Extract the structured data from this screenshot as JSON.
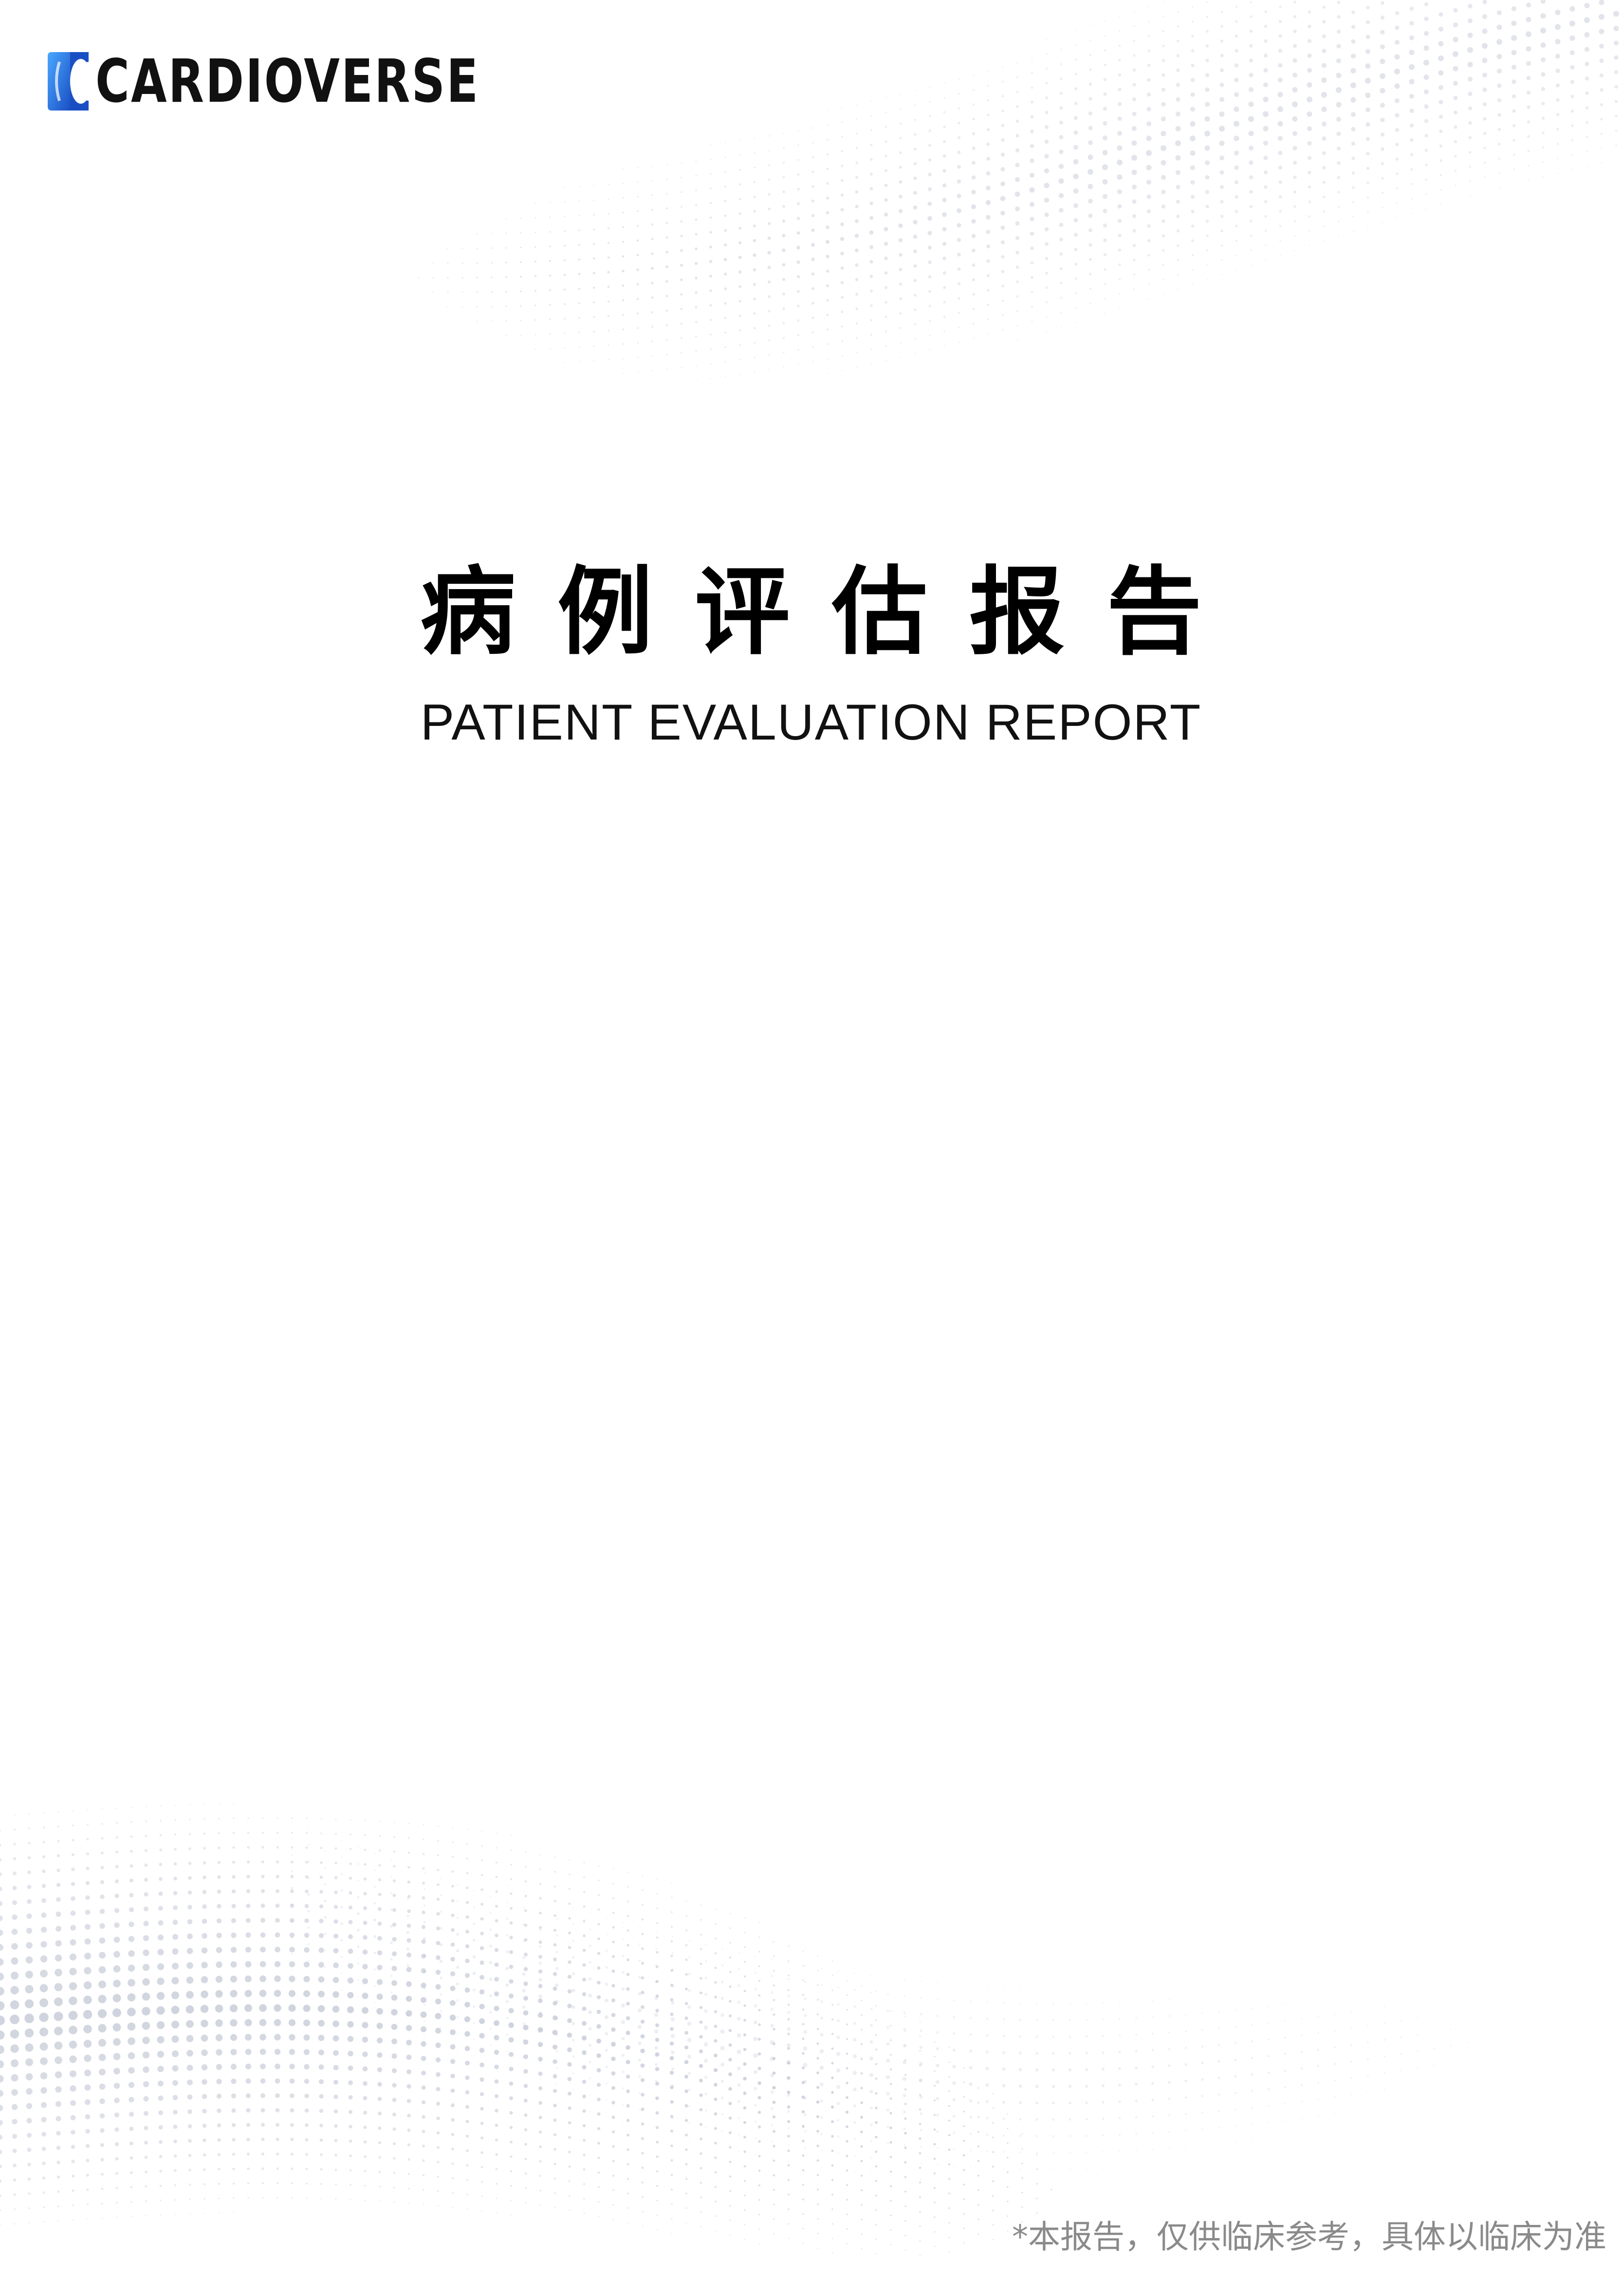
{
  "brand": {
    "name": "CARDIOVERSE",
    "logo_icon": "cardioverse-logo-icon",
    "colors": {
      "primary": "#1a4fc4",
      "light": "#4aa8ff",
      "text": "#111111"
    }
  },
  "cover": {
    "title_zh": "病例评估报告",
    "title_en": "PATIENT EVALUATION REPORT"
  },
  "footer": {
    "disclaimer": "*本报告，仅供临床参考，具体以临床为准"
  },
  "decoration": {
    "pattern": "halftone-dot-wave",
    "dot_color": "#a9b1c3"
  }
}
